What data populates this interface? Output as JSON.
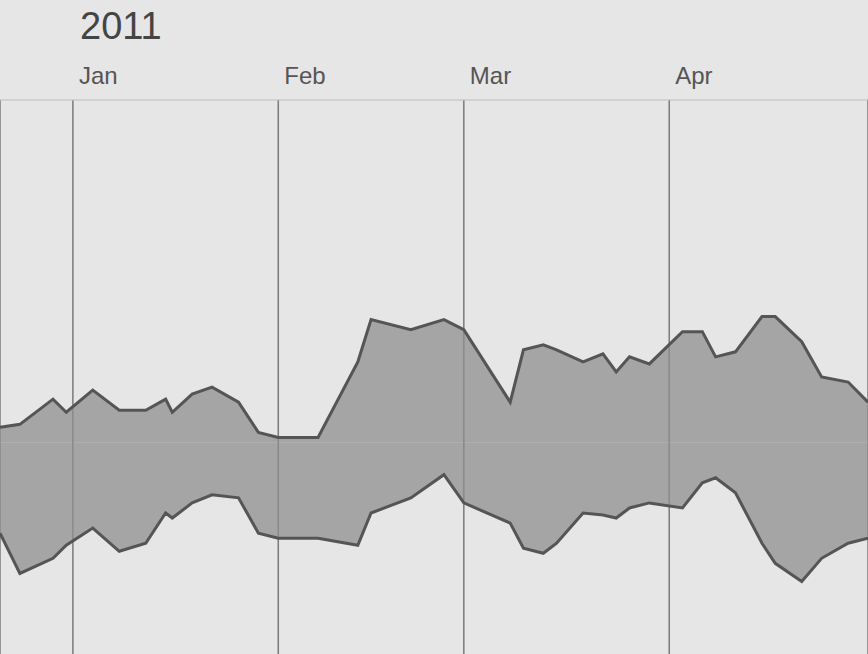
{
  "chart_data": {
    "type": "area",
    "title": "2011",
    "x": [
      -11,
      -8,
      -3,
      -1,
      3,
      7,
      11,
      14,
      15,
      18,
      21,
      25,
      28,
      31,
      37,
      43,
      45,
      51,
      56,
      59,
      66,
      68,
      71,
      73,
      77,
      80,
      82,
      84,
      87,
      92,
      95,
      97,
      100,
      104,
      106,
      110,
      113,
      117,
      120
    ],
    "series": [
      {
        "color": "#8f8f8f",
        "values": [
          1.5,
          1.8,
          4.3,
          3.0,
          5.2,
          3.2,
          3.2,
          4.3,
          3.0,
          4.8,
          5.5,
          4.0,
          1.0,
          0.5,
          0.5,
          8.0,
          12.2,
          11.2,
          12.2,
          11.2,
          4.0,
          9.2,
          9.7,
          9.2,
          8.0,
          8.8,
          7.0,
          8.5,
          7.8,
          11.0,
          11.0,
          8.5,
          9.0,
          12.5,
          12.5,
          10.0,
          6.5,
          6.0,
          4.0
        ]
      },
      {
        "color": "#8f8f8f",
        "values": [
          -9,
          -13,
          -11.5,
          -10.2,
          -8.5,
          -10.8,
          -10,
          -7,
          -7.5,
          -6,
          -5.2,
          -5.5,
          -9,
          -9.5,
          -9.5,
          -10.2,
          -7,
          -5.5,
          -3.2,
          -6,
          -8,
          -10.5,
          -11,
          -10,
          -7,
          -7.2,
          -7.5,
          -6.5,
          -6,
          -6.5,
          -4,
          -3.5,
          -5,
          -10,
          -12,
          -13.8,
          -11.5,
          -10,
          -9.5
        ]
      }
    ],
    "xlim": [
      -11,
      120
    ],
    "xticks": [
      {
        "value": 0,
        "label": "Jan"
      },
      {
        "value": 31,
        "label": "Feb"
      },
      {
        "value": 59,
        "label": "Mar"
      },
      {
        "value": 90,
        "label": "Apr"
      }
    ],
    "ylim": [
      -21,
      34
    ],
    "grid": true,
    "tick_labels": "x"
  }
}
